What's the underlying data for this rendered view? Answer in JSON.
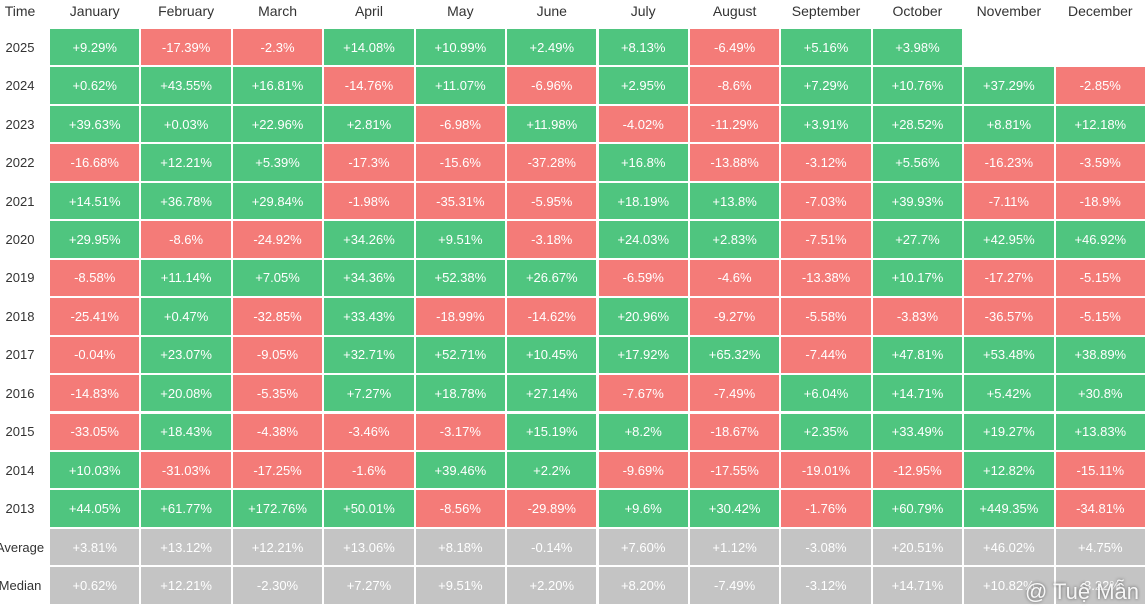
{
  "table": {
    "header": [
      "Time",
      "January",
      "February",
      "March",
      "April",
      "May",
      "June",
      "July",
      "August",
      "September",
      "October",
      "November",
      "December"
    ],
    "rows": [
      {
        "label": "2025",
        "cells": [
          "+9.29%",
          "-17.39%",
          "-2.3%",
          "+14.08%",
          "+10.99%",
          "+2.49%",
          "+8.13%",
          "-6.49%",
          "+5.16%",
          "+3.98%"
        ]
      },
      {
        "label": "2024",
        "cells": [
          "+0.62%",
          "+43.55%",
          "+16.81%",
          "-14.76%",
          "+11.07%",
          "-6.96%",
          "+2.95%",
          "-8.6%",
          "+7.29%",
          "+10.76%",
          "+37.29%",
          "-2.85%"
        ]
      },
      {
        "label": "2023",
        "cells": [
          "+39.63%",
          "+0.03%",
          "+22.96%",
          "+2.81%",
          "-6.98%",
          "+11.98%",
          "-4.02%",
          "-11.29%",
          "+3.91%",
          "+28.52%",
          "+8.81%",
          "+12.18%"
        ]
      },
      {
        "label": "2022",
        "cells": [
          "-16.68%",
          "+12.21%",
          "+5.39%",
          "-17.3%",
          "-15.6%",
          "-37.28%",
          "+16.8%",
          "-13.88%",
          "-3.12%",
          "+5.56%",
          "-16.23%",
          "-3.59%"
        ]
      },
      {
        "label": "2021",
        "cells": [
          "+14.51%",
          "+36.78%",
          "+29.84%",
          "-1.98%",
          "-35.31%",
          "-5.95%",
          "+18.19%",
          "+13.8%",
          "-7.03%",
          "+39.93%",
          "-7.11%",
          "-18.9%"
        ]
      },
      {
        "label": "2020",
        "cells": [
          "+29.95%",
          "-8.6%",
          "-24.92%",
          "+34.26%",
          "+9.51%",
          "-3.18%",
          "+24.03%",
          "+2.83%",
          "-7.51%",
          "+27.7%",
          "+42.95%",
          "+46.92%"
        ]
      },
      {
        "label": "2019",
        "cells": [
          "-8.58%",
          "+11.14%",
          "+7.05%",
          "+34.36%",
          "+52.38%",
          "+26.67%",
          "-6.59%",
          "-4.6%",
          "-13.38%",
          "+10.17%",
          "-17.27%",
          "-5.15%"
        ]
      },
      {
        "label": "2018",
        "cells": [
          "-25.41%",
          "+0.47%",
          "-32.85%",
          "+33.43%",
          "-18.99%",
          "-14.62%",
          "+20.96%",
          "-9.27%",
          "-5.58%",
          "-3.83%",
          "-36.57%",
          "-5.15%"
        ]
      },
      {
        "label": "2017",
        "cells": [
          "-0.04%",
          "+23.07%",
          "-9.05%",
          "+32.71%",
          "+52.71%",
          "+10.45%",
          "+17.92%",
          "+65.32%",
          "-7.44%",
          "+47.81%",
          "+53.48%",
          "+38.89%"
        ]
      },
      {
        "label": "2016",
        "cells": [
          "-14.83%",
          "+20.08%",
          "-5.35%",
          "+7.27%",
          "+18.78%",
          "+27.14%",
          "-7.67%",
          "-7.49%",
          "+6.04%",
          "+14.71%",
          "+5.42%",
          "+30.8%"
        ]
      },
      {
        "label": "2015",
        "cells": [
          "-33.05%",
          "+18.43%",
          "-4.38%",
          "-3.46%",
          "-3.17%",
          "+15.19%",
          "+8.2%",
          "-18.67%",
          "+2.35%",
          "+33.49%",
          "+19.27%",
          "+13.83%"
        ]
      },
      {
        "label": "2014",
        "cells": [
          "+10.03%",
          "-31.03%",
          "-17.25%",
          "-1.6%",
          "+39.46%",
          "+2.2%",
          "-9.69%",
          "-17.55%",
          "-19.01%",
          "-12.95%",
          "+12.82%",
          "-15.11%"
        ]
      },
      {
        "label": "2013",
        "cells": [
          "+44.05%",
          "+61.77%",
          "+172.76%",
          "+50.01%",
          "-8.56%",
          "-29.89%",
          "+9.6%",
          "+30.42%",
          "-1.76%",
          "+60.79%",
          "+449.35%",
          "-34.81%"
        ]
      }
    ],
    "summary": [
      {
        "label": "Average",
        "cells": [
          "+3.81%",
          "+13.12%",
          "+12.21%",
          "+13.06%",
          "+8.18%",
          "-0.14%",
          "+7.60%",
          "+1.12%",
          "-3.08%",
          "+20.51%",
          "+46.02%",
          "+4.75%"
        ]
      },
      {
        "label": "Median",
        "cells": [
          "+0.62%",
          "+12.21%",
          "-2.30%",
          "+7.27%",
          "+9.51%",
          "+2.20%",
          "+8.20%",
          "-7.49%",
          "-3.12%",
          "+14.71%",
          "+10.82%",
          "-3.22%"
        ]
      }
    ]
  },
  "watermark": "@ Tuệ Mẫn"
}
